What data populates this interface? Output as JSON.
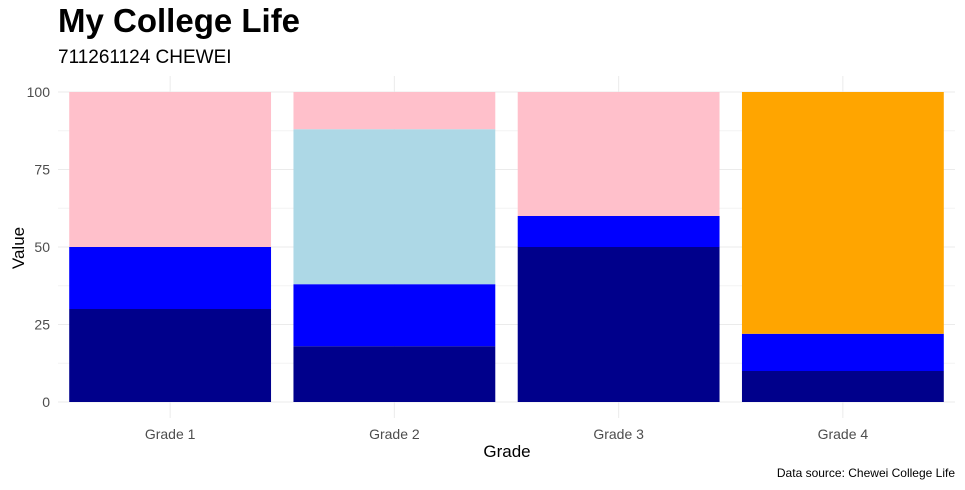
{
  "chart_data": {
    "type": "bar",
    "stacked": true,
    "title": "My College Life",
    "subtitle": "711261124 CHEWEI",
    "caption": "Data source: Chewei College Life",
    "xlabel": "Grade",
    "ylabel": "Value",
    "ylim": [
      0,
      100
    ],
    "yticks": [
      0,
      25,
      50,
      75,
      100
    ],
    "grid": true,
    "legend": "none",
    "categories": [
      "Grade 1",
      "Grade 2",
      "Grade 3",
      "Grade 4"
    ],
    "series": [
      {
        "color": "#00008B",
        "values": [
          30,
          18,
          50,
          10
        ]
      },
      {
        "color": "#0000FF",
        "values": [
          20,
          20,
          10,
          12
        ]
      },
      {
        "color": "#ADD8E6",
        "values": [
          0,
          50,
          0,
          0
        ]
      },
      {
        "color": "#FFC0CB",
        "values": [
          50,
          12,
          40,
          0
        ]
      },
      {
        "color": "#FFA500",
        "values": [
          0,
          0,
          0,
          78
        ]
      }
    ]
  }
}
